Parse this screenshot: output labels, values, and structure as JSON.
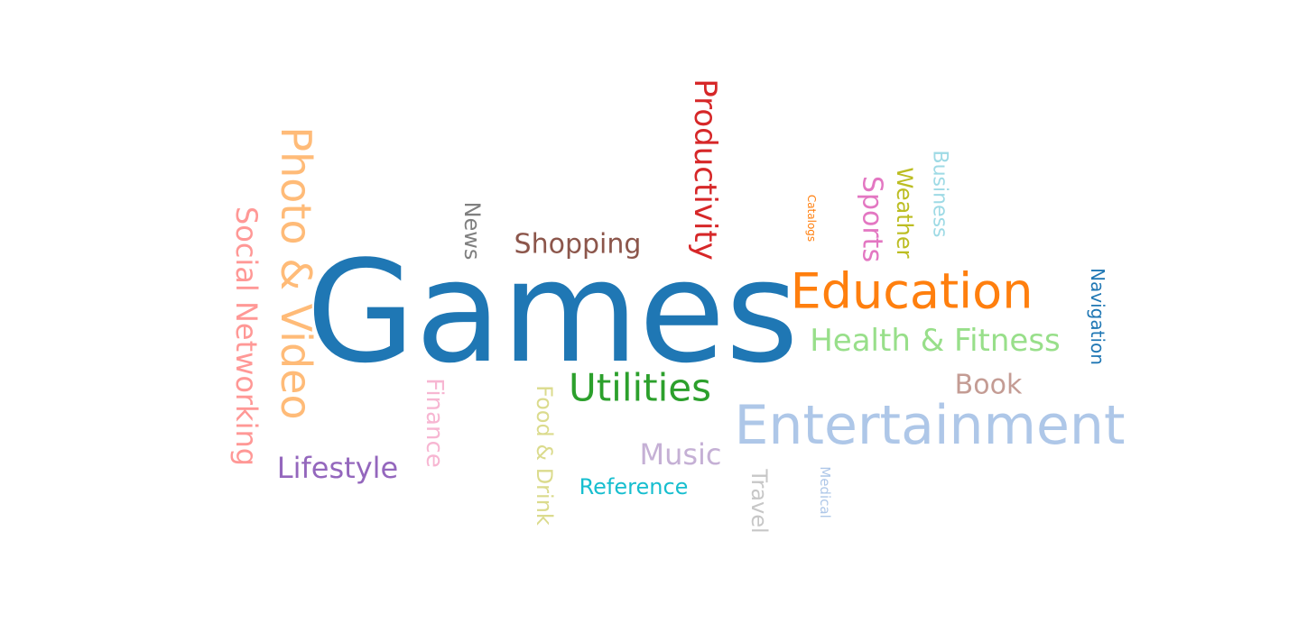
{
  "words": [
    {
      "id": "games",
      "text": "Games",
      "color": "#1f77b4",
      "rotated": false
    },
    {
      "id": "entertainment",
      "text": "Entertainment",
      "color": "#aec7e8",
      "rotated": false
    },
    {
      "id": "education",
      "text": "Education",
      "color": "#ff7f0e",
      "rotated": false
    },
    {
      "id": "photo-video",
      "text": "Photo & Video",
      "color": "#ffbb78",
      "rotated": true
    },
    {
      "id": "utilities",
      "text": "Utilities",
      "color": "#2ca02c",
      "rotated": false
    },
    {
      "id": "health-fitness",
      "text": "Health & Fitness",
      "color": "#98df8a",
      "rotated": false
    },
    {
      "id": "productivity",
      "text": "Productivity",
      "color": "#d62728",
      "rotated": true
    },
    {
      "id": "social-networking",
      "text": "Social Networking",
      "color": "#ff9896",
      "rotated": true
    },
    {
      "id": "lifestyle",
      "text": "Lifestyle",
      "color": "#9467bd",
      "rotated": false
    },
    {
      "id": "music",
      "text": "Music",
      "color": "#c5b0d5",
      "rotated": false
    },
    {
      "id": "shopping",
      "text": "Shopping",
      "color": "#8c564b",
      "rotated": false
    },
    {
      "id": "book",
      "text": "Book",
      "color": "#c49c94",
      "rotated": false
    },
    {
      "id": "sports",
      "text": "Sports",
      "color": "#e377c2",
      "rotated": true
    },
    {
      "id": "finance",
      "text": "Finance",
      "color": "#f7b6d2",
      "rotated": true
    },
    {
      "id": "news",
      "text": "News",
      "color": "#7f7f7f",
      "rotated": true
    },
    {
      "id": "travel",
      "text": "Travel",
      "color": "#c7c7c7",
      "rotated": true
    },
    {
      "id": "weather",
      "text": "Weather",
      "color": "#bcbd22",
      "rotated": true
    },
    {
      "id": "food-drink",
      "text": "Food & Drink",
      "color": "#dbdb8d",
      "rotated": true
    },
    {
      "id": "reference",
      "text": "Reference",
      "color": "#17becf",
      "rotated": false
    },
    {
      "id": "business",
      "text": "Business",
      "color": "#9edae5",
      "rotated": true
    },
    {
      "id": "navigation",
      "text": "Navigation",
      "color": "#1f77b4",
      "rotated": true
    },
    {
      "id": "medical",
      "text": "Medical",
      "color": "#aec7e8",
      "rotated": true
    },
    {
      "id": "catalogs",
      "text": "Catalogs",
      "color": "#ff7f0e",
      "rotated": true
    }
  ]
}
